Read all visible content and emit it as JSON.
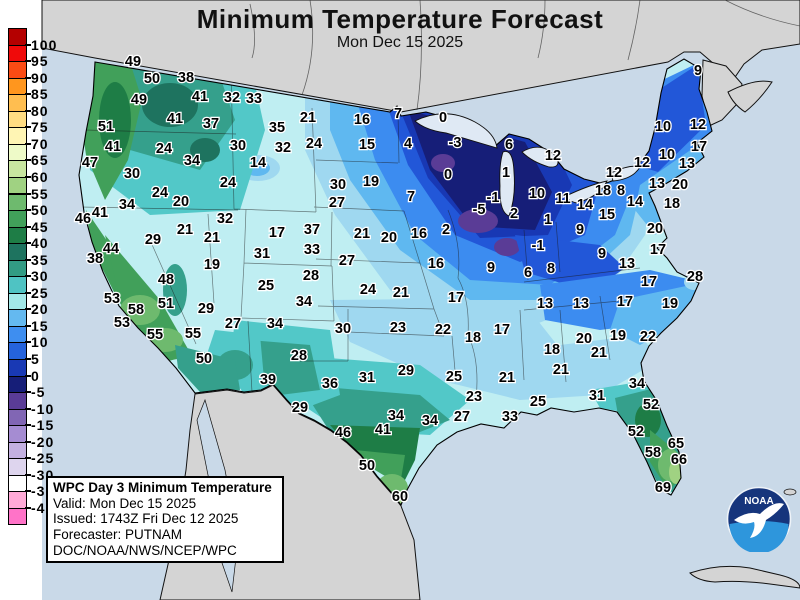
{
  "title": "Minimum Temperature Forecast",
  "subtitle": "Mon Dec 15 2025",
  "info_box": {
    "heading": "WPC Day 3 Minimum Temperature",
    "valid": "Valid: Mon Dec 15 2025",
    "issued": "Issued: 1743Z Fri Dec 12 2025",
    "forecaster": "Forecaster: PUTNAM",
    "agency": "DOC/NOAA/NWS/NCEP/WPC"
  },
  "logo": {
    "text": "NOAA"
  },
  "colorbar": {
    "labels": [
      "100",
      "95",
      "90",
      "85",
      "80",
      "75",
      "70",
      "65",
      "60",
      "55",
      "50",
      "45",
      "40",
      "35",
      "30",
      "25",
      "20",
      "15",
      "10",
      "5",
      "0",
      "-5",
      "-10",
      "-15",
      "-20",
      "-25",
      "-30",
      "-35",
      "-40"
    ],
    "block_colors": [
      "#b40000",
      "#f00a0a",
      "#fa4b14",
      "#ff961e",
      "#ffbe50",
      "#ffdc82",
      "#fff5b4",
      "#eefac8",
      "#c8e6a0",
      "#a0d282",
      "#6eba6e",
      "#41a05a",
      "#1e7d46",
      "#1e735f",
      "#329b84",
      "#4fc3c3",
      "#a2e8e8",
      "#64b9f0",
      "#3e8ef0",
      "#2563dc",
      "#1939b4",
      "#161e78",
      "#5a3c96",
      "#8166b4",
      "#a58cd2",
      "#c3b0e0",
      "#ded5ee",
      "#ffffff",
      "#ffaad7",
      "#ff73c8"
    ]
  },
  "colors": {
    "ocean": "#c9d9e8",
    "land_foreign": "#d4d4d4",
    "page": "#ffffff",
    "halo": "#ffffff",
    "value_text": "#000000"
  },
  "map_values": [
    [
      49,
      133,
      66
    ],
    [
      50,
      152,
      83
    ],
    [
      38,
      186,
      82
    ],
    [
      49,
      139,
      104
    ],
    [
      41,
      200,
      101
    ],
    [
      32,
      232,
      102
    ],
    [
      33,
      254,
      103
    ],
    [
      41,
      175,
      123
    ],
    [
      37,
      211,
      128
    ],
    [
      51,
      106,
      131
    ],
    [
      35,
      277,
      132
    ],
    [
      41,
      113,
      151
    ],
    [
      24,
      164,
      153
    ],
    [
      30,
      238,
      150
    ],
    [
      32,
      283,
      152
    ],
    [
      47,
      90,
      167
    ],
    [
      34,
      192,
      165
    ],
    [
      14,
      258,
      167
    ],
    [
      30,
      132,
      178
    ],
    [
      24,
      228,
      187
    ],
    [
      24,
      160,
      197
    ],
    [
      20,
      181,
      206
    ],
    [
      34,
      127,
      209
    ],
    [
      41,
      100,
      217
    ],
    [
      46,
      83,
      223
    ],
    [
      32,
      225,
      223
    ],
    [
      21,
      185,
      234
    ],
    [
      21,
      212,
      242
    ],
    [
      17,
      277,
      237
    ],
    [
      29,
      153,
      244
    ],
    [
      44,
      111,
      253
    ],
    [
      31,
      262,
      258
    ],
    [
      38,
      95,
      263
    ],
    [
      19,
      212,
      269
    ],
    [
      48,
      166,
      284
    ],
    [
      25,
      266,
      290
    ],
    [
      53,
      112,
      303
    ],
    [
      51,
      166,
      308
    ],
    [
      58,
      136,
      314
    ],
    [
      29,
      206,
      313
    ],
    [
      53,
      122,
      327
    ],
    [
      27,
      233,
      328
    ],
    [
      34,
      275,
      328
    ],
    [
      55,
      155,
      339
    ],
    [
      55,
      193,
      338
    ],
    [
      50,
      204,
      363
    ],
    [
      39,
      268,
      384
    ],
    [
      29,
      300,
      412
    ],
    [
      21,
      308,
      122
    ],
    [
      16,
      362,
      124
    ],
    [
      7,
      398,
      118
    ],
    [
      0,
      443,
      122
    ],
    [
      24,
      314,
      148
    ],
    [
      15,
      367,
      149
    ],
    [
      4,
      408,
      148
    ],
    [
      -3,
      455,
      147
    ],
    [
      6,
      509,
      149
    ],
    [
      30,
      338,
      189
    ],
    [
      19,
      371,
      186
    ],
    [
      0,
      448,
      179
    ],
    [
      1,
      506,
      177
    ],
    [
      7,
      411,
      201
    ],
    [
      -1,
      493,
      202
    ],
    [
      27,
      337,
      207
    ],
    [
      12,
      553,
      160
    ],
    [
      10,
      537,
      198
    ],
    [
      11,
      563,
      203
    ],
    [
      -5,
      479,
      214
    ],
    [
      2,
      514,
      218
    ],
    [
      1,
      548,
      224
    ],
    [
      14,
      585,
      209
    ],
    [
      15,
      607,
      219
    ],
    [
      18,
      603,
      195
    ],
    [
      9,
      698,
      75
    ],
    [
      10,
      663,
      131
    ],
    [
      12,
      698,
      129
    ],
    [
      17,
      699,
      151
    ],
    [
      10,
      667,
      159
    ],
    [
      13,
      687,
      168
    ],
    [
      12,
      642,
      167
    ],
    [
      12,
      614,
      177
    ],
    [
      13,
      657,
      188
    ],
    [
      20,
      680,
      189
    ],
    [
      18,
      672,
      208
    ],
    [
      8,
      621,
      195
    ],
    [
      14,
      635,
      206
    ],
    [
      28,
      695,
      281
    ],
    [
      37,
      312,
      234
    ],
    [
      21,
      362,
      238
    ],
    [
      20,
      389,
      242
    ],
    [
      16,
      419,
      238
    ],
    [
      2,
      446,
      234
    ],
    [
      33,
      312,
      254
    ],
    [
      27,
      347,
      265
    ],
    [
      16,
      436,
      268
    ],
    [
      9,
      491,
      272
    ],
    [
      28,
      311,
      280
    ],
    [
      24,
      368,
      294
    ],
    [
      21,
      401,
      297
    ],
    [
      17,
      456,
      302
    ],
    [
      34,
      304,
      306
    ],
    [
      30,
      343,
      333
    ],
    [
      23,
      398,
      332
    ],
    [
      22,
      443,
      334
    ],
    [
      18,
      473,
      342
    ],
    [
      17,
      502,
      334
    ],
    [
      9,
      580,
      234
    ],
    [
      -1,
      538,
      250
    ],
    [
      9,
      602,
      258
    ],
    [
      13,
      627,
      268
    ],
    [
      6,
      528,
      277
    ],
    [
      8,
      551,
      273
    ],
    [
      20,
      655,
      233
    ],
    [
      17,
      658,
      254
    ],
    [
      17,
      649,
      286
    ],
    [
      13,
      545,
      308
    ],
    [
      13,
      581,
      308
    ],
    [
      17,
      625,
      306
    ],
    [
      19,
      670,
      308
    ],
    [
      28,
      299,
      360
    ],
    [
      36,
      330,
      388
    ],
    [
      31,
      367,
      382
    ],
    [
      29,
      406,
      375
    ],
    [
      34,
      396,
      420
    ],
    [
      41,
      383,
      434
    ],
    [
      46,
      343,
      437
    ],
    [
      34,
      430,
      425
    ],
    [
      50,
      367,
      470
    ],
    [
      60,
      400,
      501
    ],
    [
      25,
      454,
      381
    ],
    [
      21,
      507,
      382
    ],
    [
      23,
      474,
      401
    ],
    [
      27,
      462,
      421
    ],
    [
      33,
      510,
      421
    ],
    [
      25,
      538,
      406
    ],
    [
      31,
      597,
      400
    ],
    [
      18,
      552,
      354
    ],
    [
      21,
      561,
      374
    ],
    [
      20,
      584,
      343
    ],
    [
      19,
      618,
      340
    ],
    [
      22,
      648,
      341
    ],
    [
      21,
      599,
      357
    ],
    [
      34,
      637,
      388
    ],
    [
      52,
      651,
      409
    ],
    [
      52,
      636,
      436
    ],
    [
      58,
      653,
      457
    ],
    [
      65,
      676,
      448
    ],
    [
      66,
      679,
      464
    ],
    [
      69,
      663,
      492
    ]
  ]
}
